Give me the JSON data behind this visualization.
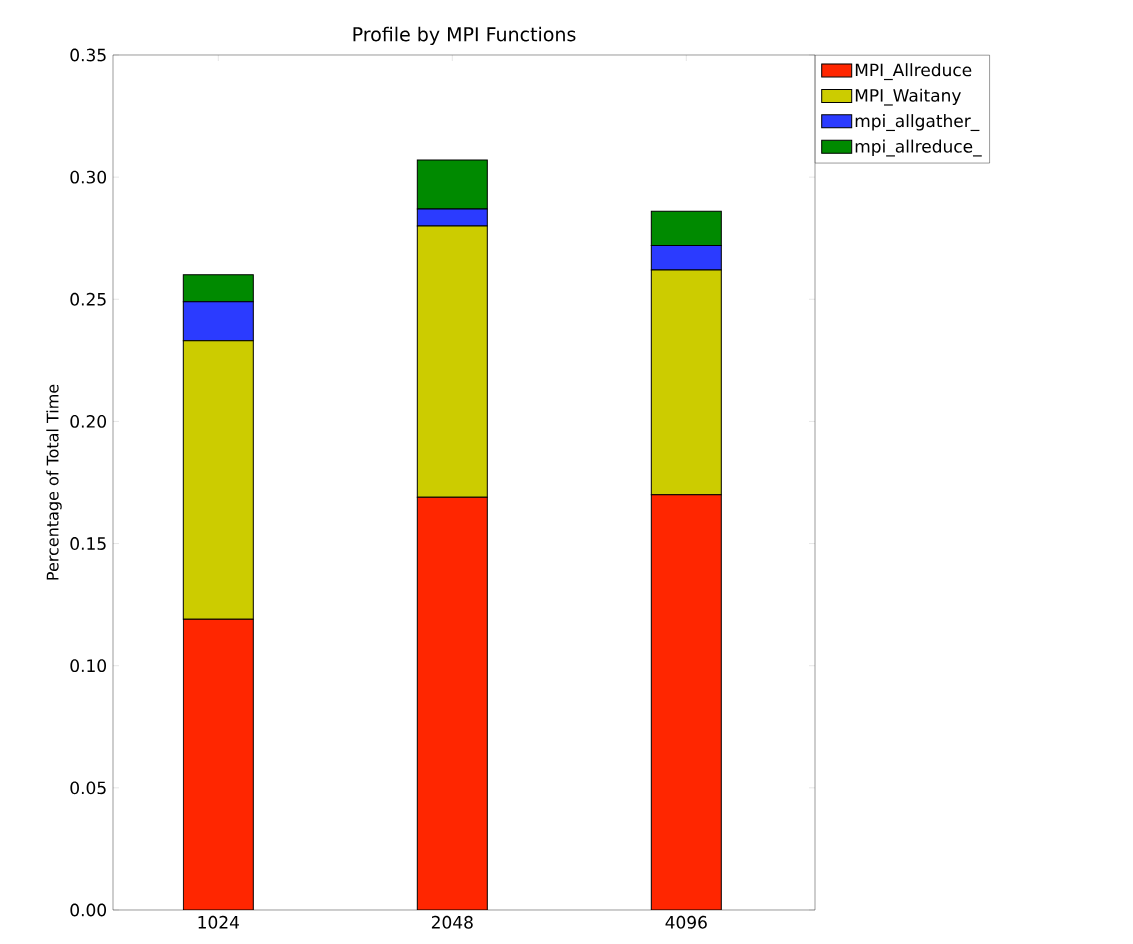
{
  "chart_data": {
    "type": "bar",
    "title": "Profile by MPI Functions",
    "ylabel": "Percentage of Total Time",
    "categories": [
      "1024",
      "2048",
      "4096"
    ],
    "series": [
      {
        "name": "MPI_Allreduce",
        "color": "#ff2600",
        "values": [
          0.119,
          0.169,
          0.17
        ]
      },
      {
        "name": "MPI_Waitany",
        "color": "#cccc00",
        "values": [
          0.114,
          0.111,
          0.092
        ]
      },
      {
        "name": "mpi_allgather_",
        "color": "#2b3bff",
        "values": [
          0.016,
          0.007,
          0.01
        ]
      },
      {
        "name": "mpi_allreduce_",
        "color": "#008a00",
        "values": [
          0.011,
          0.02,
          0.014
        ]
      }
    ],
    "stacked": true,
    "ylim": [
      0,
      0.35
    ],
    "yticks": [
      {
        "value": 0,
        "label": "0.00"
      },
      {
        "value": 0.05,
        "label": "0.05"
      },
      {
        "value": 0.1,
        "label": "0.10"
      },
      {
        "value": 0.15,
        "label": "0.15"
      },
      {
        "value": 0.2,
        "label": "0.20"
      },
      {
        "value": 0.25,
        "label": "0.25"
      },
      {
        "value": 0.3,
        "label": "0.30"
      },
      {
        "value": 0.35,
        "label": "0.35"
      }
    ],
    "grid": false,
    "legend": "top right"
  }
}
